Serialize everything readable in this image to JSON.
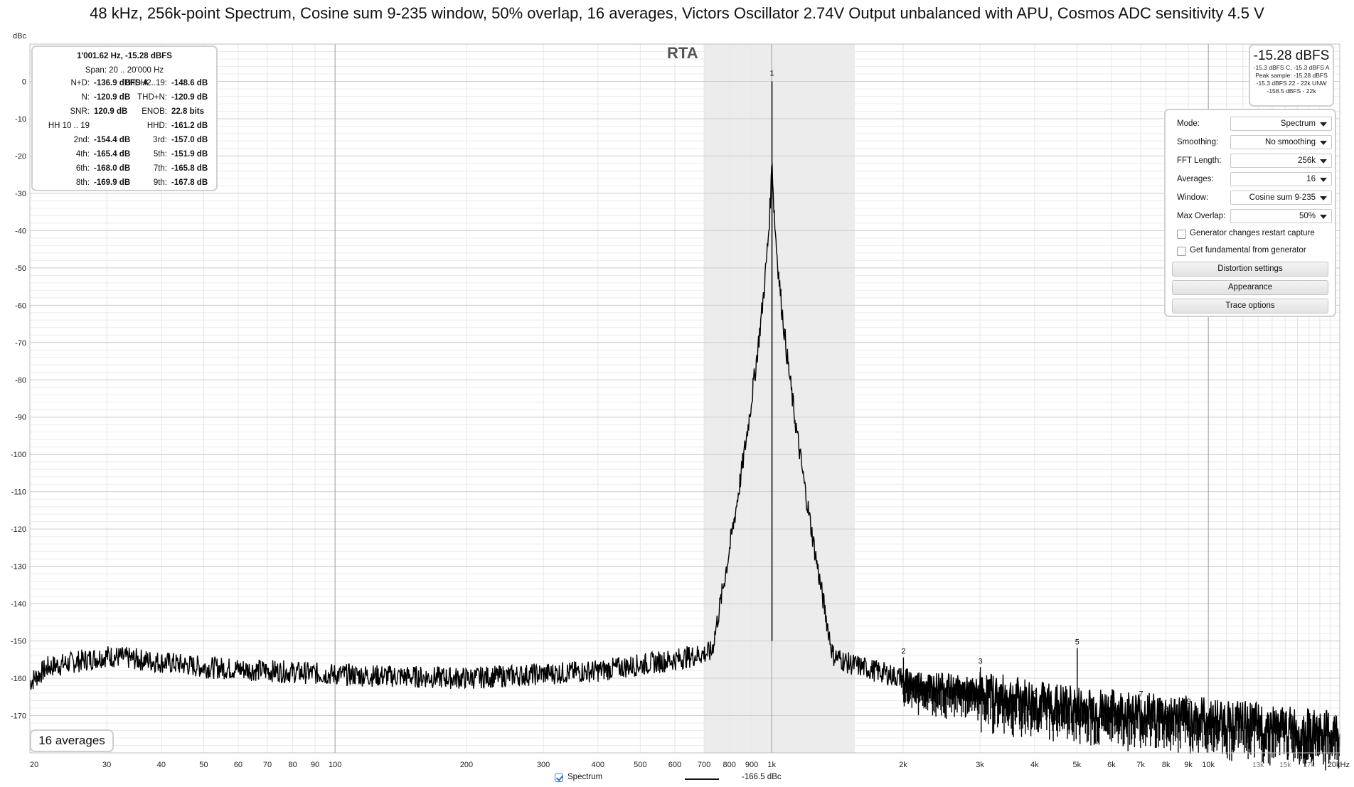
{
  "title": "48 kHz, 256k-point Spectrum, Cosine sum 9-235 window, 50% overlap, 16 averages, Victors Oscillator 2.74V Output unbalanced with APU, Cosmos ADC sensitivity 4.5 V",
  "rta_label": "RTA",
  "stats": {
    "header_line1": "1'001.62 Hz, -15.28 dBFS",
    "header_line2": "Span: 20 .. 20'000 Hz",
    "rows": [
      {
        "l": "N+D:",
        "lv": "-136.9 dBFS A",
        "r": "THDH2..19:",
        "rv": "-148.6 dB"
      },
      {
        "l": "N:",
        "lv": "-120.9 dB",
        "r": "THD+N:",
        "rv": "-120.9 dB"
      },
      {
        "l": "SNR:",
        "lv": "120.9 dB",
        "r": "ENOB:",
        "rv": "22.8 bits"
      },
      {
        "l": "HH 10 .. 19",
        "lv": "",
        "r": "HHD:",
        "rv": "-161.2 dB"
      },
      {
        "l": "2nd:",
        "lv": "-154.4 dB",
        "r": "3rd:",
        "rv": "-157.0 dB"
      },
      {
        "l": "4th:",
        "lv": "-165.4 dB",
        "r": "5th:",
        "rv": "-151.9 dB"
      },
      {
        "l": "6th:",
        "lv": "-168.0 dB",
        "r": "7th:",
        "rv": "-165.8 dB"
      },
      {
        "l": "8th:",
        "lv": "-169.9 dB",
        "r": "9th:",
        "rv": "-167.8 dB"
      }
    ]
  },
  "level": {
    "main": "-15.28 dBFS",
    "lines": [
      "-15.3 dBFS C, -15.3 dBFS A",
      "Peak sample: -15.28 dBFS",
      "-15.3 dBFS 22 - 22k UNW",
      "-158.5 dBFS - 22k"
    ]
  },
  "settings": {
    "rows": [
      {
        "label": "Mode:",
        "value": "Spectrum"
      },
      {
        "label": "Smoothing:",
        "value": "No smoothing"
      },
      {
        "label": "FFT Length:",
        "value": "256k"
      },
      {
        "label": "Averages:",
        "value": "16"
      },
      {
        "label": "Window:",
        "value": "Cosine sum 9-235"
      },
      {
        "label": "Max Overlap:",
        "value": "50%"
      }
    ],
    "checks": [
      "Generator changes restart capture",
      "Get fundamental from generator"
    ],
    "buttons": [
      "Distortion settings",
      "Appearance",
      "Trace options"
    ]
  },
  "averages_badge": "16 averages",
  "legend": {
    "name": "Spectrum",
    "value": "-166.5 dBc",
    "checked": true
  },
  "chart_data": {
    "type": "line",
    "ylabel": "dBc",
    "xscale": "log",
    "xlim": [
      20,
      20000
    ],
    "ylim": [
      -180,
      10
    ],
    "y_ticks": [
      0,
      -10,
      -20,
      -30,
      -40,
      -50,
      -60,
      -70,
      -80,
      -90,
      -100,
      -110,
      -120,
      -130,
      -140,
      -150,
      -160,
      -170
    ],
    "x_ticks": [
      {
        "v": 20,
        "t": "20"
      },
      {
        "v": 30,
        "t": "30"
      },
      {
        "v": 40,
        "t": "40"
      },
      {
        "v": 50,
        "t": "50"
      },
      {
        "v": 60,
        "t": "60"
      },
      {
        "v": 70,
        "t": "70"
      },
      {
        "v": 80,
        "t": "80"
      },
      {
        "v": 90,
        "t": "90"
      },
      {
        "v": 100,
        "t": "100"
      },
      {
        "v": 200,
        "t": "200"
      },
      {
        "v": 300,
        "t": "300"
      },
      {
        "v": 400,
        "t": "400"
      },
      {
        "v": 500,
        "t": "500"
      },
      {
        "v": 600,
        "t": "600"
      },
      {
        "v": 700,
        "t": "700"
      },
      {
        "v": 800,
        "t": "800"
      },
      {
        "v": 900,
        "t": "900"
      },
      {
        "v": 1000,
        "t": "1k"
      },
      {
        "v": 2000,
        "t": "2k"
      },
      {
        "v": 3000,
        "t": "3k"
      },
      {
        "v": 4000,
        "t": "4k"
      },
      {
        "v": 5000,
        "t": "5k"
      },
      {
        "v": 6000,
        "t": "6k"
      },
      {
        "v": 7000,
        "t": "7k"
      },
      {
        "v": 8000,
        "t": "8k"
      },
      {
        "v": 9000,
        "t": "9k"
      },
      {
        "v": 10000,
        "t": "10k"
      },
      {
        "v": 13000,
        "t": "13k",
        "minor": true
      },
      {
        "v": 15000,
        "t": "15k",
        "minor": true
      },
      {
        "v": 17000,
        "t": "17k",
        "minor": true
      },
      {
        "v": 20000,
        "t": "20kHz"
      }
    ],
    "shaded_band": [
      700,
      1550
    ],
    "fundamental": {
      "freq": 1001.62,
      "level": 0,
      "label": "1"
    },
    "harmonics": [
      {
        "n": "2",
        "freq": 2003,
        "level": -154.4
      },
      {
        "n": "3",
        "freq": 3005,
        "level": -157.0
      },
      {
        "n": "4",
        "freq": 4006,
        "level": -165.4
      },
      {
        "n": "5",
        "freq": 5008,
        "level": -151.9
      },
      {
        "n": "6",
        "freq": 6010,
        "level": -168.0
      },
      {
        "n": "7",
        "freq": 7011,
        "level": -165.8
      },
      {
        "n": "8",
        "freq": 8013,
        "level": -169.9
      },
      {
        "n": "9",
        "freq": 9015,
        "level": -167.8
      }
    ],
    "noise_floor": [
      {
        "f": 20,
        "db": -161
      },
      {
        "f": 22,
        "db": -157
      },
      {
        "f": 30,
        "db": -154
      },
      {
        "f": 50,
        "db": -157
      },
      {
        "f": 100,
        "db": -159
      },
      {
        "f": 200,
        "db": -160
      },
      {
        "f": 400,
        "db": -158
      },
      {
        "f": 600,
        "db": -155
      },
      {
        "f": 800,
        "db": -152
      },
      {
        "f": 950,
        "db": -140
      },
      {
        "f": 1001.62,
        "db": 0
      },
      {
        "f": 1060,
        "db": -140
      },
      {
        "f": 1200,
        "db": -150
      },
      {
        "f": 1500,
        "db": -156
      },
      {
        "f": 2000,
        "db": -160
      },
      {
        "f": 3000,
        "db": -163
      },
      {
        "f": 5000,
        "db": -167
      },
      {
        "f": 10000,
        "db": -170
      },
      {
        "f": 20000,
        "db": -174
      }
    ]
  }
}
